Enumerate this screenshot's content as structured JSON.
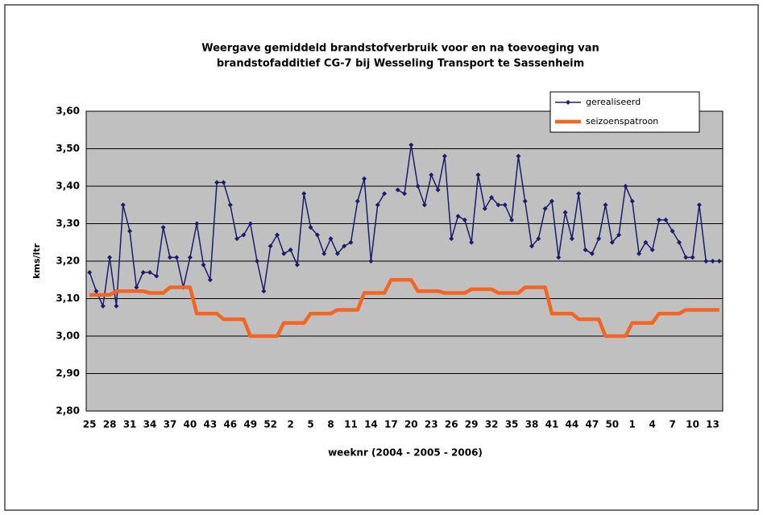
{
  "chart_data": {
    "type": "line",
    "title": "Weergave gemiddeld brandstofverbruik voor en na toevoeging van",
    "subtitle": "brandstofadditief CG-7 bij Wesseling Transport te Sassenheim",
    "x_label": "weeknr (2004 - 2005 - 2006)",
    "y_label": "kms/ltr",
    "categories": [
      "25",
      null,
      null,
      "28",
      null,
      null,
      "31",
      null,
      null,
      "34",
      null,
      null,
      "37",
      null,
      null,
      "40",
      null,
      null,
      "43",
      null,
      null,
      "46",
      null,
      null,
      "49",
      null,
      null,
      "52",
      null,
      null,
      "2",
      null,
      null,
      "5",
      null,
      null,
      "8",
      null,
      null,
      "11",
      null,
      null,
      "14",
      null,
      null,
      "17",
      null,
      null,
      "20",
      null,
      null,
      "23",
      null,
      null,
      "26",
      null,
      null,
      "29",
      null,
      null,
      "32",
      null,
      null,
      "35",
      null,
      null,
      "38",
      null,
      null,
      "41",
      null,
      null,
      "44",
      null,
      null,
      "47",
      null,
      null,
      "50",
      null,
      null,
      "1",
      null,
      null,
      "4",
      null,
      null,
      "7",
      null,
      null,
      "10",
      null,
      null,
      "13",
      null
    ],
    "series": [
      {
        "name": "gerealiseerd",
        "color": "#1c1c6b",
        "values": [
          3.17,
          3.12,
          3.08,
          3.21,
          3.08,
          3.35,
          3.28,
          3.13,
          3.17,
          3.17,
          3.16,
          3.29,
          3.21,
          3.21,
          3.13,
          3.21,
          3.3,
          3.19,
          3.15,
          3.41,
          3.41,
          3.35,
          3.26,
          3.27,
          3.3,
          3.2,
          3.12,
          3.24,
          3.27,
          3.22,
          3.23,
          3.19,
          3.38,
          3.29,
          3.27,
          3.22,
          3.26,
          3.22,
          3.24,
          3.25,
          3.36,
          3.42,
          3.2,
          3.35,
          3.38,
          null,
          3.39,
          3.38,
          3.51,
          3.4,
          3.35,
          3.43,
          3.39,
          3.48,
          3.26,
          3.32,
          3.31,
          3.25,
          3.43,
          3.34,
          3.37,
          3.35,
          3.35,
          3.31,
          3.48,
          3.36,
          3.24,
          3.26,
          3.34,
          3.36,
          3.21,
          3.33,
          3.26,
          3.38,
          3.23,
          3.22,
          3.26,
          3.35,
          3.25,
          3.27,
          3.4,
          3.36,
          3.22,
          3.25,
          3.23,
          3.31,
          3.31,
          3.28,
          3.25,
          3.21,
          3.21,
          3.35,
          3.2,
          3.2,
          3.2
        ]
      },
      {
        "name": "seizoenspatroon",
        "color": "#f26522",
        "values": [
          3.11,
          3.11,
          3.11,
          3.11,
          3.12,
          3.12,
          3.12,
          3.12,
          3.12,
          3.115,
          3.115,
          3.115,
          3.13,
          3.13,
          3.13,
          3.13,
          3.06,
          3.06,
          3.06,
          3.06,
          3.045,
          3.045,
          3.045,
          3.045,
          3.0,
          3.0,
          3.0,
          3.0,
          3.0,
          3.035,
          3.035,
          3.035,
          3.035,
          3.06,
          3.06,
          3.06,
          3.06,
          3.07,
          3.07,
          3.07,
          3.07,
          3.115,
          3.115,
          3.115,
          3.115,
          3.15,
          3.15,
          3.15,
          3.15,
          3.12,
          3.12,
          3.12,
          3.12,
          3.115,
          3.115,
          3.115,
          3.115,
          3.125,
          3.125,
          3.125,
          3.125,
          3.115,
          3.115,
          3.115,
          3.115,
          3.13,
          3.13,
          3.13,
          3.13,
          3.06,
          3.06,
          3.06,
          3.06,
          3.045,
          3.045,
          3.045,
          3.045,
          3.0,
          3.0,
          3.0,
          3.0,
          3.035,
          3.035,
          3.035,
          3.035,
          3.06,
          3.06,
          3.06,
          3.06,
          3.07,
          3.07,
          3.07,
          3.07,
          3.07,
          3.07
        ]
      }
    ],
    "ylim": [
      2.8,
      3.6
    ],
    "yticks": [
      {
        "value": 2.8,
        "label": "2,80"
      },
      {
        "value": 2.9,
        "label": "2,90"
      },
      {
        "value": 3.0,
        "label": "3,00"
      },
      {
        "value": 3.1,
        "label": "3,10"
      },
      {
        "value": 3.2,
        "label": "3,20"
      },
      {
        "value": 3.3,
        "label": "3,30"
      },
      {
        "value": 3.4,
        "label": "3,40"
      },
      {
        "value": 3.5,
        "label": "3,50"
      },
      {
        "value": 3.6,
        "label": "3,60"
      }
    ],
    "grid": true,
    "legend": "top-right"
  }
}
